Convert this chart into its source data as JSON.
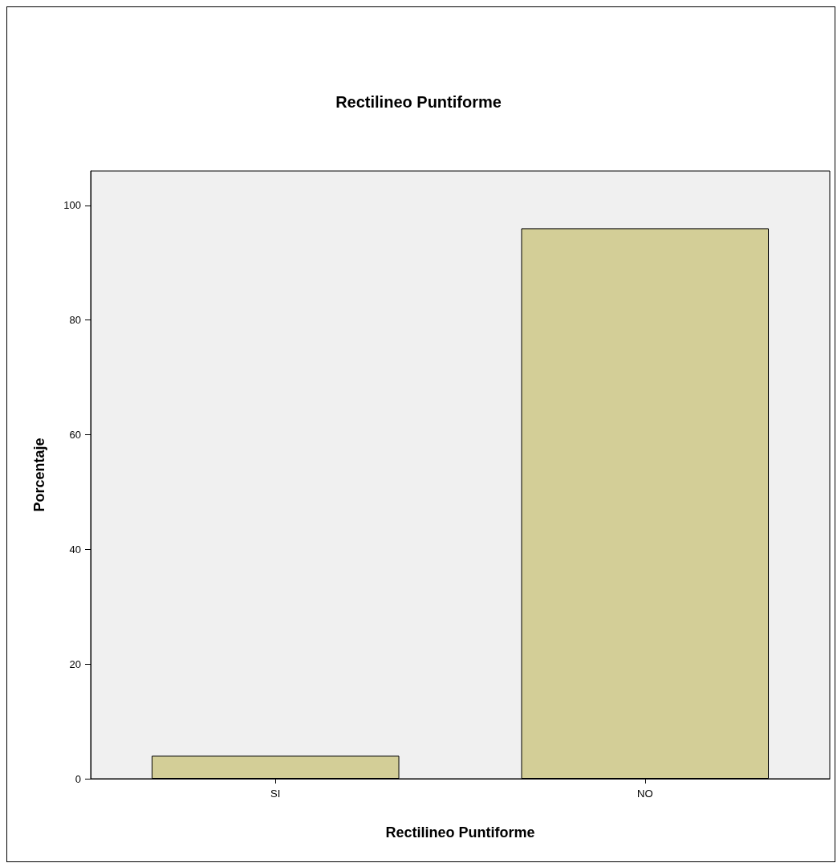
{
  "chart_data": {
    "type": "bar",
    "title": "Rectilineo Puntiforme",
    "xlabel": "Rectilineo Puntiforme",
    "ylabel": "Porcentaje",
    "categories": [
      "SI",
      "NO"
    ],
    "values": [
      4,
      96
    ],
    "color": "#d3ce97",
    "ylim": [
      0,
      106
    ],
    "yticks": [
      0,
      20,
      40,
      60,
      80,
      100
    ],
    "grid": false
  }
}
